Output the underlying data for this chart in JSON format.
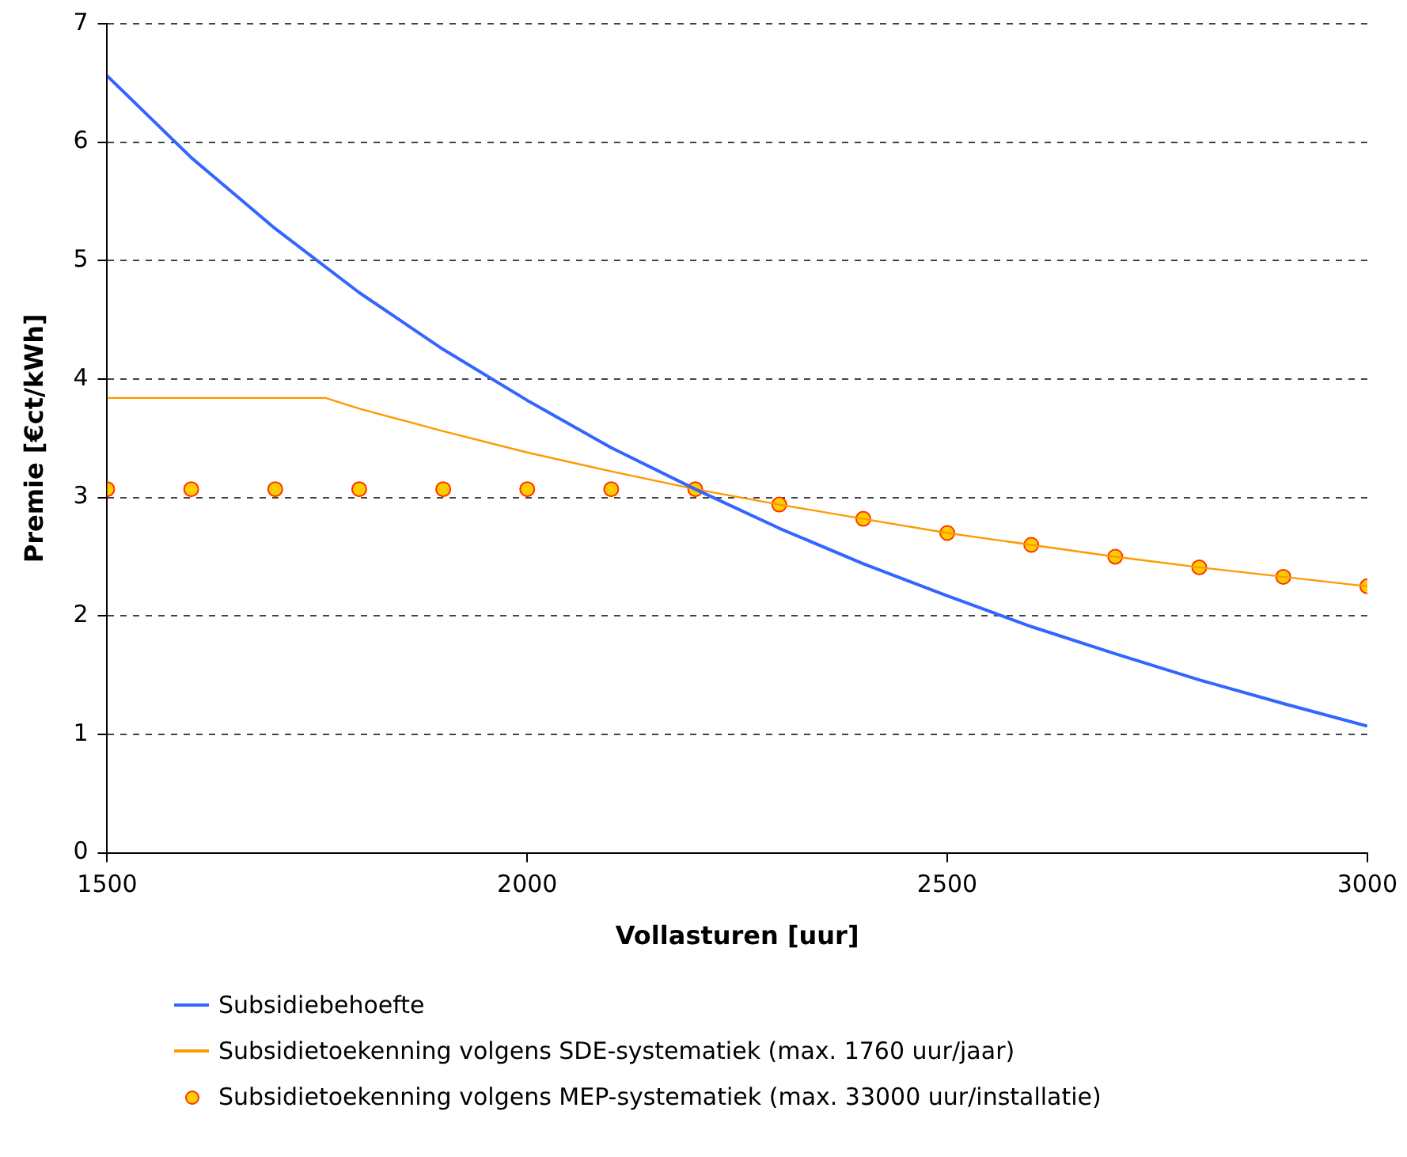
{
  "chart_data": {
    "type": "line",
    "xlabel": "Vollasturen [uur]",
    "ylabel": "Premie [€ct/kWh]",
    "xlim": [
      1500,
      3000
    ],
    "xticks": [
      1500,
      2000,
      2500,
      3000
    ],
    "ylim": [
      0,
      7
    ],
    "yticks": [
      0,
      1,
      2,
      3,
      4,
      5,
      6,
      7
    ],
    "grid": "y",
    "legend": "bottom",
    "series": [
      {
        "name": "Subsidiebehoefte",
        "type": "line",
        "color": "#3366ff",
        "marker": "none",
        "x": [
          1500,
          1600,
          1700,
          1800,
          1900,
          2000,
          2100,
          2200,
          2300,
          2400,
          2500,
          2600,
          2700,
          2800,
          2900,
          3000
        ],
        "values": [
          6.56,
          5.87,
          5.27,
          4.73,
          4.25,
          3.82,
          3.42,
          3.07,
          2.74,
          2.44,
          2.17,
          1.91,
          1.68,
          1.46,
          1.26,
          1.07
        ]
      },
      {
        "name": "Subsidietoekenning volgens SDE-systematiek (max. 1760 uur/jaar)",
        "type": "line",
        "color": "#ff9900",
        "marker": "none",
        "x": [
          1500,
          1760,
          1800,
          1900,
          2000,
          2100,
          2200,
          2300,
          2400,
          2500,
          2600,
          2700,
          2800,
          2900,
          3000
        ],
        "values": [
          3.84,
          3.84,
          3.75,
          3.56,
          3.38,
          3.22,
          3.07,
          2.94,
          2.82,
          2.7,
          2.6,
          2.5,
          2.41,
          2.33,
          2.25
        ]
      },
      {
        "name": "Subsidietoekenning volgens MEP-systematiek (max. 33000 uur/installatie)",
        "type": "scatter",
        "color": "#ffcc00",
        "marker": "circle",
        "x": [
          1500,
          1600,
          1700,
          1800,
          1900,
          2000,
          2100,
          2200,
          2300,
          2400,
          2500,
          2600,
          2700,
          2800,
          2900,
          3000
        ],
        "values": [
          3.07,
          3.07,
          3.07,
          3.07,
          3.07,
          3.07,
          3.07,
          3.07,
          2.94,
          2.82,
          2.7,
          2.6,
          2.5,
          2.41,
          2.33,
          2.25
        ]
      }
    ]
  }
}
